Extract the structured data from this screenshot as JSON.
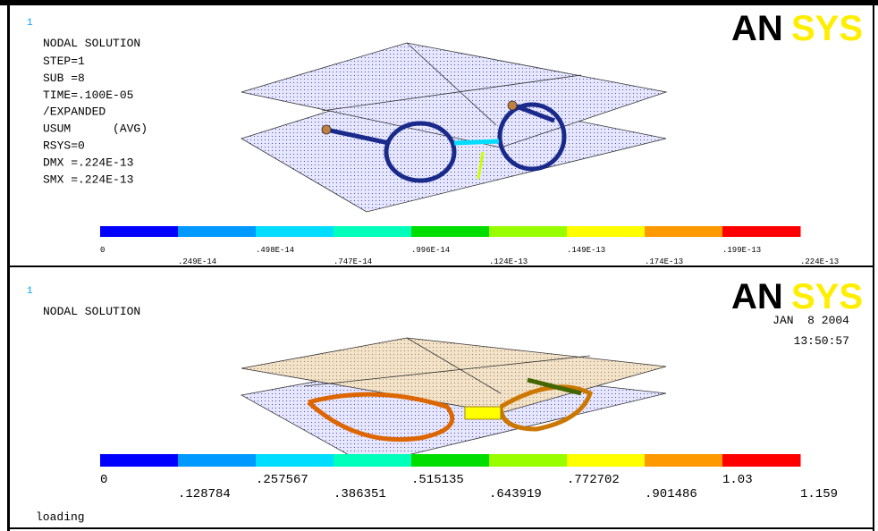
{
  "panels": [
    {
      "window": "1",
      "title": "NODAL SOLUTION",
      "info": [
        "STEP=1",
        "SUB =8",
        "TIME=.100E-05",
        "/EXPANDED",
        "USUM      (AVG)",
        "RSYS=0",
        "DMX =.224E-13",
        "SMX =.224E-13"
      ],
      "logo_left": "AN",
      "logo_right": "SYS",
      "legend_labels": [
        "0",
        ".249E-14",
        ".498E-14",
        ".747E-14",
        ".996E-14",
        ".124E-13",
        ".149E-13",
        ".174E-13",
        ".199E-13",
        ".224E-13"
      ]
    },
    {
      "window": "1",
      "title": "NODAL SOLUTION",
      "date": "JAN  8 2004",
      "time": "13:50:57",
      "logo_left": "AN",
      "logo_right": "SYS",
      "legend_labels": [
        "0",
        ".128784",
        ".257567",
        ".386351",
        ".515135",
        ".643919",
        ".772702",
        ".901486",
        "1.03",
        "1.159"
      ]
    }
  ],
  "legend_colors": [
    "#0000ff",
    "#0099ff",
    "#00ddff",
    "#00ffbb",
    "#00dd00",
    "#99ff00",
    "#ffff00",
    "#ff9900",
    "#ff0000"
  ],
  "status": "loading"
}
